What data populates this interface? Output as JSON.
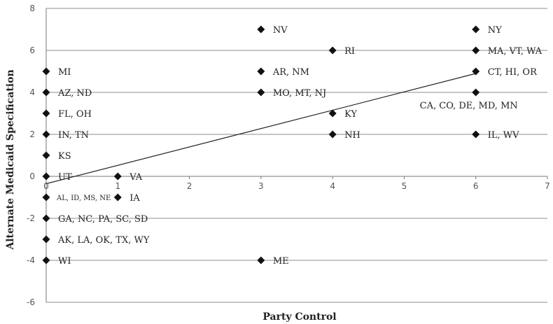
{
  "chart_data": {
    "type": "scatter",
    "xlabel": "Party Control",
    "ylabel": "Alternate Medicaid Specification",
    "xlim": [
      0,
      7
    ],
    "ylim": [
      -6,
      8
    ],
    "x_ticks": [
      "0",
      "1",
      "2",
      "3",
      "4",
      "5",
      "6",
      "7"
    ],
    "y_ticks": [
      "8",
      "6",
      "4",
      "2",
      "0",
      "-2",
      "-4",
      "-6"
    ],
    "grid": "horizontal",
    "trendline": {
      "x0": 0,
      "y0": -0.35,
      "x1": 6,
      "y1": 4.9
    },
    "points": [
      {
        "x": 3,
        "y": 7,
        "label": "NV"
      },
      {
        "x": 6,
        "y": 7,
        "label": "NY"
      },
      {
        "x": 4,
        "y": 6,
        "label": "RI"
      },
      {
        "x": 6,
        "y": 6,
        "label": "MA, VT, WA"
      },
      {
        "x": 0,
        "y": 5,
        "label": "MI"
      },
      {
        "x": 3,
        "y": 5,
        "label": "AR, NM"
      },
      {
        "x": 6,
        "y": 5,
        "label": "CT, HI, OR"
      },
      {
        "x": 0,
        "y": 4,
        "label": "AZ, ND"
      },
      {
        "x": 3,
        "y": 4,
        "label": "MO, MT, NJ"
      },
      {
        "x": 6,
        "y": 4,
        "label": "CA, CO, DE, MD, MN"
      },
      {
        "x": 0,
        "y": 3,
        "label": "FL, OH"
      },
      {
        "x": 4,
        "y": 3,
        "label": "KY"
      },
      {
        "x": 0,
        "y": 2,
        "label": "IN, TN"
      },
      {
        "x": 4,
        "y": 2,
        "label": "NH"
      },
      {
        "x": 6,
        "y": 2,
        "label": "IL, WV"
      },
      {
        "x": 0,
        "y": 1,
        "label": "KS"
      },
      {
        "x": 0,
        "y": 0,
        "label": "UT"
      },
      {
        "x": 1,
        "y": 0,
        "label": "VA"
      },
      {
        "x": 0,
        "y": -1,
        "label": "AL, ID, MS, NE"
      },
      {
        "x": 1,
        "y": -1,
        "label": "IA"
      },
      {
        "x": 0,
        "y": -2,
        "label": "GA, NC, PA, SC, SD"
      },
      {
        "x": 0,
        "y": -3,
        "label": "AK, LA, OK, TX, WY"
      },
      {
        "x": 0,
        "y": -4,
        "label": "WI"
      },
      {
        "x": 3,
        "y": -4,
        "label": "ME"
      }
    ]
  }
}
